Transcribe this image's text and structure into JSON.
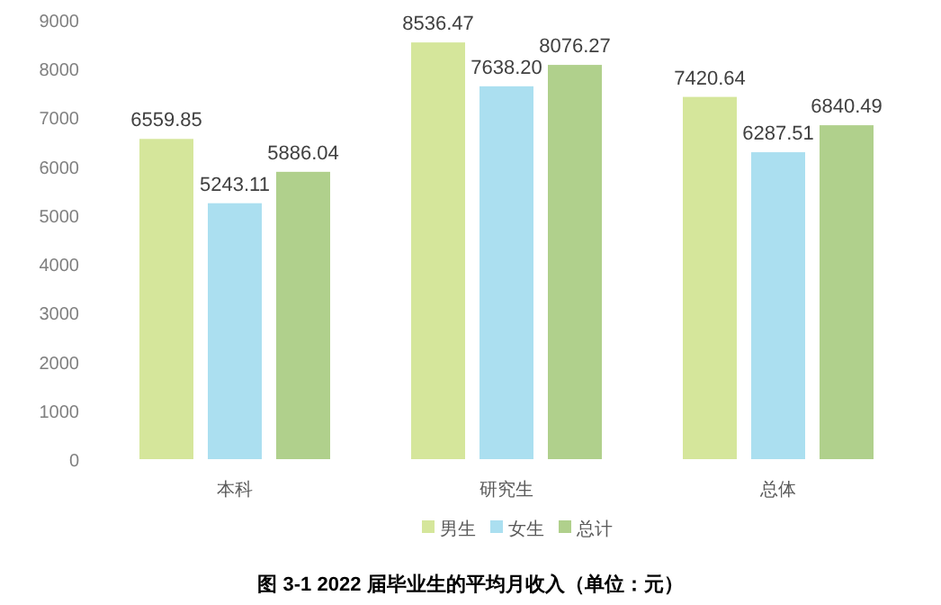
{
  "chart_data": {
    "type": "bar",
    "title": "图  3-1   2022 届毕业生的平均月收入（单位：元）",
    "categories": [
      "本科",
      "研究生",
      "总体"
    ],
    "series": [
      {
        "name": "男生",
        "color": "#d5e69b",
        "values": [
          6559.85,
          8536.47,
          7420.64
        ],
        "value_labels": [
          "6559.85",
          "8536.47",
          "7420.64"
        ]
      },
      {
        "name": "女生",
        "color": "#abdff0",
        "values": [
          5243.11,
          7638.2,
          6287.51
        ],
        "value_labels": [
          "5243.11",
          "7638.20",
          "6287.51"
        ]
      },
      {
        "name": "总计",
        "color": "#b0d08c",
        "values": [
          5886.04,
          8076.27,
          6840.49
        ],
        "value_labels": [
          "5886.04",
          "8076.27",
          "6840.49"
        ]
      }
    ],
    "ylim": [
      0,
      9000
    ],
    "yticks": [
      0,
      1000,
      2000,
      3000,
      4000,
      5000,
      6000,
      7000,
      8000,
      9000
    ],
    "grid": false,
    "legend": "bottom"
  }
}
